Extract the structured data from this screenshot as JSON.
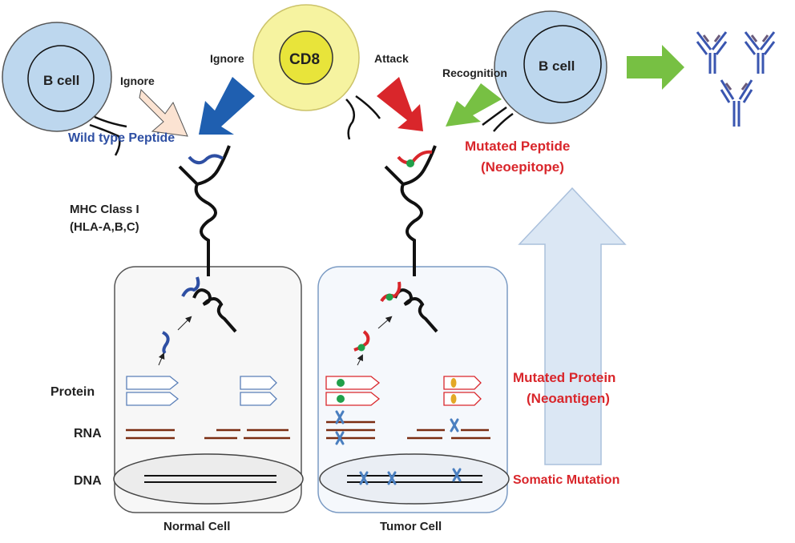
{
  "labels": {
    "b_cell_left": "B cell",
    "b_cell_right": "B cell",
    "cd8": "CD8",
    "ignore_left": "Ignore",
    "ignore_center": "Ignore",
    "attack": "Attack",
    "recognition": "Recognition",
    "wild_type_peptide": "Wild type Peptide",
    "mutated_peptide_line1": "Mutated Peptide",
    "mutated_peptide_line2": "(Neoepitope)",
    "mhc_line1": "MHC Class I",
    "mhc_line2": "(HLA-A,B,C)",
    "protein": "Protein",
    "rna": "RNA",
    "dna": "DNA",
    "mutated_protein_line1": "Mutated Protein",
    "mutated_protein_line2": "(Neoantigen)",
    "somatic_mutation": "Somatic Mutation",
    "normal_cell": "Normal Cell",
    "tumor_cell": "Tumor Cell"
  },
  "colors": {
    "b_cell_fill": "#bdd7ee",
    "cd8_fill": "#f6f3a0",
    "cd8_ring": "#e8e43a",
    "arrow_blue": "#1f5fb0",
    "arrow_red": "#d9262b",
    "arrow_green": "#77c043",
    "arrow_peach": "#fbe3d2",
    "antibody": "#3a56b0",
    "antibody_hinge": "#6a5a7a",
    "wild_peptide": "#2e4fa3",
    "mutated_red": "#d9262b",
    "mutation_dot": "#21a04a",
    "mutation_x": "#4a7fc0",
    "rna_brown": "#7b2d12",
    "big_arrow_fill": "#dbe7f4"
  },
  "icons": {
    "antibody": "antibody-icon",
    "mutation": "x-mark-icon"
  }
}
